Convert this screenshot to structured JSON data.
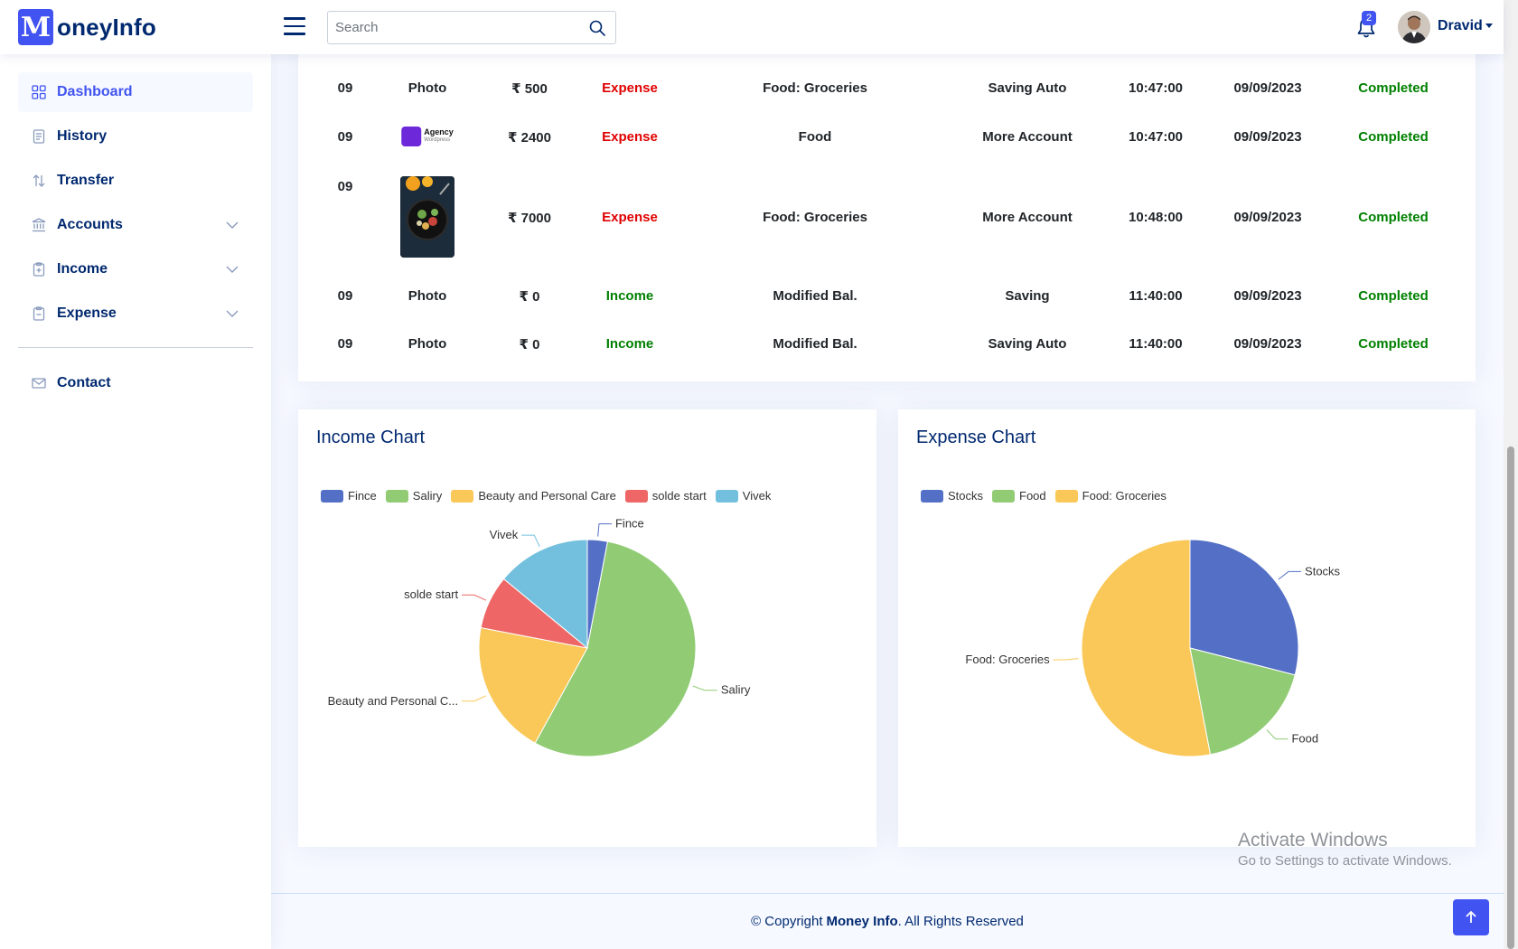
{
  "header": {
    "logo_letter": "M",
    "logo_text": "oneyInfo",
    "search_placeholder": "Search",
    "notification_count": "2",
    "user_name": "Dravid"
  },
  "sidebar": {
    "items": [
      {
        "label": "Dashboard",
        "icon": "grid-icon",
        "active": true
      },
      {
        "label": "History",
        "icon": "document-icon"
      },
      {
        "label": "Transfer",
        "icon": "transfer-icon"
      },
      {
        "label": "Accounts",
        "icon": "bank-icon",
        "expandable": true
      },
      {
        "label": "Income",
        "icon": "clipboard-plus-icon",
        "expandable": true
      },
      {
        "label": "Expense",
        "icon": "clipboard-minus-icon",
        "expandable": true
      }
    ],
    "contact": {
      "label": "Contact",
      "icon": "envelope-icon"
    }
  },
  "transactions": [
    {
      "day": "09",
      "image": "Photo",
      "amount": "₹ 500",
      "type": "Expense",
      "category": "Food: Groceries",
      "account": "Saving Auto",
      "time": "10:47:00",
      "date": "09/09/2023",
      "status": "Completed"
    },
    {
      "day": "09",
      "image": "agency-logo",
      "image_text": "Agency",
      "image_subtext": "Wordpress",
      "amount": "₹ 2400",
      "type": "Expense",
      "category": "Food",
      "account": "More Account",
      "time": "10:47:00",
      "date": "09/09/2023",
      "status": "Completed"
    },
    {
      "day": "09",
      "image": "food-photo",
      "amount": "₹ 7000",
      "type": "Expense",
      "category": "Food: Groceries",
      "account": "More Account",
      "time": "10:48:00",
      "date": "09/09/2023",
      "status": "Completed"
    },
    {
      "day": "09",
      "image": "Photo",
      "amount": "₹ 0",
      "type": "Income",
      "category": "Modified Bal.",
      "account": "Saving",
      "time": "11:40:00",
      "date": "09/09/2023",
      "status": "Completed"
    },
    {
      "day": "09",
      "image": "Photo",
      "amount": "₹ 0",
      "type": "Income",
      "category": "Modified Bal.",
      "account": "Saving Auto",
      "time": "11:40:00",
      "date": "09/09/2023",
      "status": "Completed"
    }
  ],
  "charts": {
    "income_title": "Income Chart",
    "expense_title": "Expense Chart"
  },
  "chart_data": [
    {
      "type": "pie",
      "title": "Income Chart",
      "categories": [
        "Fince",
        "Saliry",
        "Beauty and Personal Care",
        "solde start",
        "Vivek"
      ],
      "slice_labels": [
        "Fince",
        "Saliry",
        "Beauty and Personal C...",
        "solde start",
        "Vivek"
      ],
      "values": [
        3,
        55,
        20,
        8,
        14
      ],
      "colors": [
        "#5470c6",
        "#91cc75",
        "#fac858",
        "#ee6666",
        "#73c0de"
      ],
      "legend": "top-left"
    },
    {
      "type": "pie",
      "title": "Expense Chart",
      "categories": [
        "Stocks",
        "Food",
        "Food: Groceries"
      ],
      "slice_labels": [
        "Stocks",
        "Food",
        "Food: Groceries"
      ],
      "values": [
        29,
        18,
        53
      ],
      "colors": [
        "#5470c6",
        "#91cc75",
        "#fac858"
      ],
      "legend": "top-left"
    }
  ],
  "watermark": {
    "line1": "Activate Windows",
    "line2": "Go to Settings to activate Windows."
  },
  "footer": {
    "prefix": "© Copyright",
    "brand": "Money Info",
    "suffix": ". All Rights Reserved"
  },
  "colors": {
    "accent": "#4154f1",
    "navy": "#012970",
    "expense": "#e00000",
    "income": "#008000"
  }
}
